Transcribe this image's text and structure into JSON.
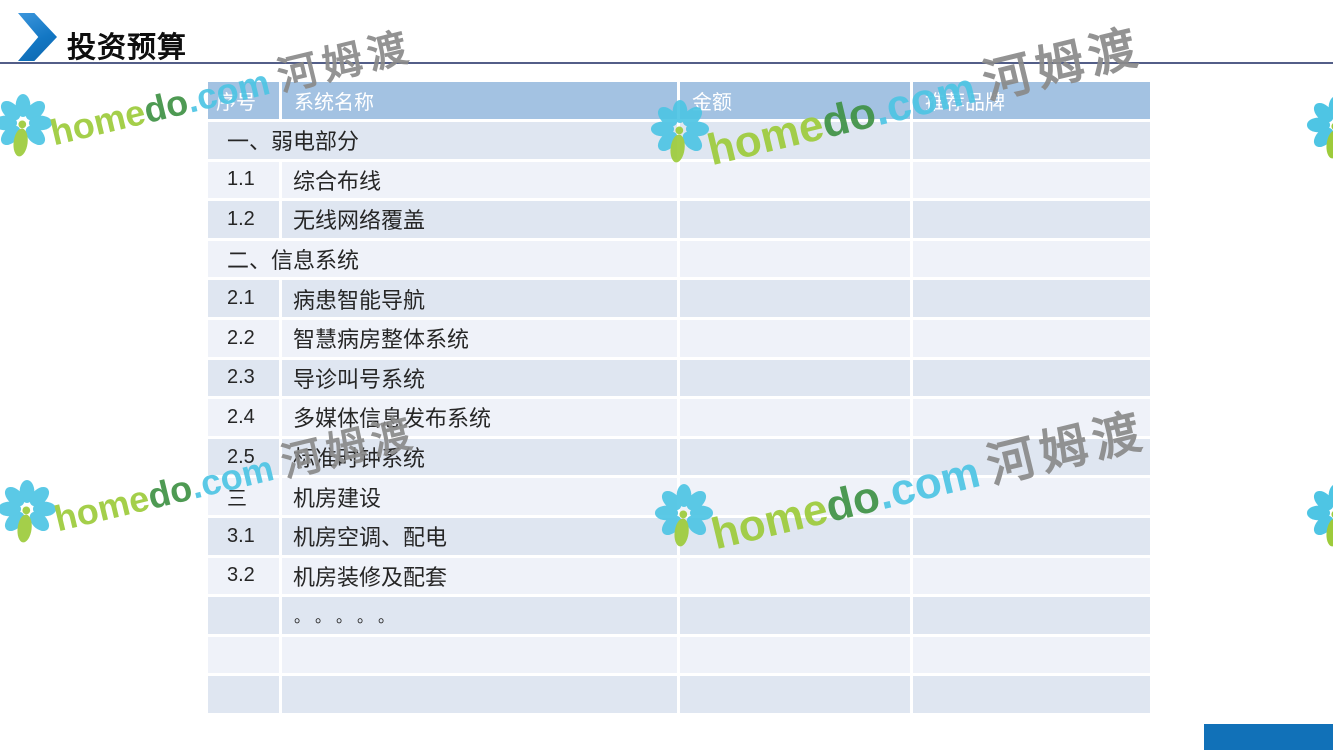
{
  "header": {
    "title": "投资预算"
  },
  "table": {
    "columns": [
      "序号",
      "系统名称",
      "金额",
      "推荐品牌"
    ],
    "rows": [
      {
        "type": "section",
        "label": "一、弱电部分",
        "amount": "",
        "brand": ""
      },
      {
        "type": "item",
        "num": "1.1",
        "name": "综合布线",
        "amount": "",
        "brand": ""
      },
      {
        "type": "item",
        "num": "1.2",
        "name": "无线网络覆盖",
        "amount": "",
        "brand": ""
      },
      {
        "type": "section",
        "label": "二、信息系统",
        "amount": "",
        "brand": ""
      },
      {
        "type": "item",
        "num": "2.1",
        "name": "病患智能导航",
        "amount": "",
        "brand": ""
      },
      {
        "type": "item",
        "num": "2.2",
        "name": "智慧病房整体系统",
        "amount": "",
        "brand": ""
      },
      {
        "type": "item",
        "num": "2.3",
        "name": "导诊叫号系统",
        "amount": "",
        "brand": ""
      },
      {
        "type": "item",
        "num": "2.4",
        "name": "多媒体信息发布系统",
        "amount": "",
        "brand": ""
      },
      {
        "type": "item",
        "num": "2.5",
        "name": "标准时钟系统",
        "amount": "",
        "brand": ""
      },
      {
        "type": "item",
        "num": "三",
        "name": "机房建设",
        "amount": "",
        "brand": ""
      },
      {
        "type": "item",
        "num": "3.1",
        "name": "机房空调、配电",
        "amount": "",
        "brand": ""
      },
      {
        "type": "item",
        "num": "3.2",
        "name": "机房装修及配套",
        "amount": "",
        "brand": ""
      },
      {
        "type": "item",
        "num": "",
        "name": "。。。。。",
        "amount": "",
        "brand": "",
        "dots": true
      },
      {
        "type": "item",
        "num": "",
        "name": "",
        "amount": "",
        "brand": ""
      },
      {
        "type": "item",
        "num": "",
        "name": "",
        "amount": "",
        "brand": ""
      }
    ]
  },
  "watermark": {
    "home": "home",
    "do": "do",
    "com": ".com",
    "cjk": "河姆渡"
  },
  "colors": {
    "header_bg": "#A3C2E2",
    "band_dark": "#DFE6F1",
    "band_light": "#EFF2F9",
    "accent_blue": "#1377C4",
    "bottom_bar_blue": "#1171B8",
    "title_rule": "#535E88",
    "watermark_lime": "#9DCB3B",
    "watermark_green": "#3F9245",
    "watermark_teal": "#4EC5E4",
    "watermark_gray": "#8A8A8A"
  }
}
